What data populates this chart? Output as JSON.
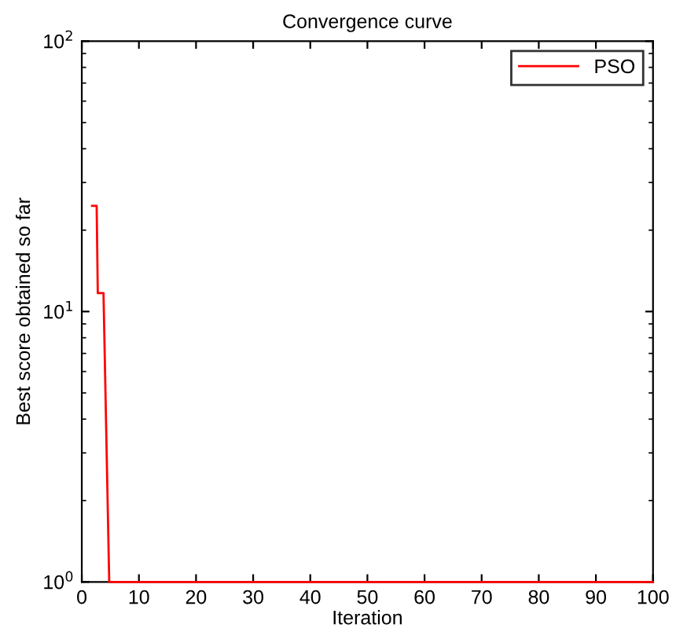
{
  "chart_data": {
    "type": "line",
    "title": "Convergence curve",
    "xlabel": "Iteration",
    "ylabel": "Best score obtained so far",
    "x": [
      1.8,
      2.6,
      2.8,
      3.8,
      4.8,
      100
    ],
    "series": [
      {
        "name": "PSO",
        "color": "#ff0000",
        "values": [
          24.6,
          24.6,
          11.7,
          11.7,
          1,
          1
        ]
      }
    ],
    "log": "y",
    "xlim": [
      0,
      100
    ],
    "ylim": [
      1,
      100
    ],
    "xticks": [
      0,
      10,
      20,
      30,
      40,
      50,
      60,
      70,
      80,
      90,
      100
    ],
    "yticks": [
      {
        "value": 1,
        "label": "10$^{0}$"
      },
      {
        "value": 10,
        "label": "10$^{1}$"
      },
      {
        "value": 100,
        "label": "10$^{2}$"
      }
    ],
    "grid": false,
    "legend": "top right",
    "line_style": "solid",
    "marker": "none"
  }
}
